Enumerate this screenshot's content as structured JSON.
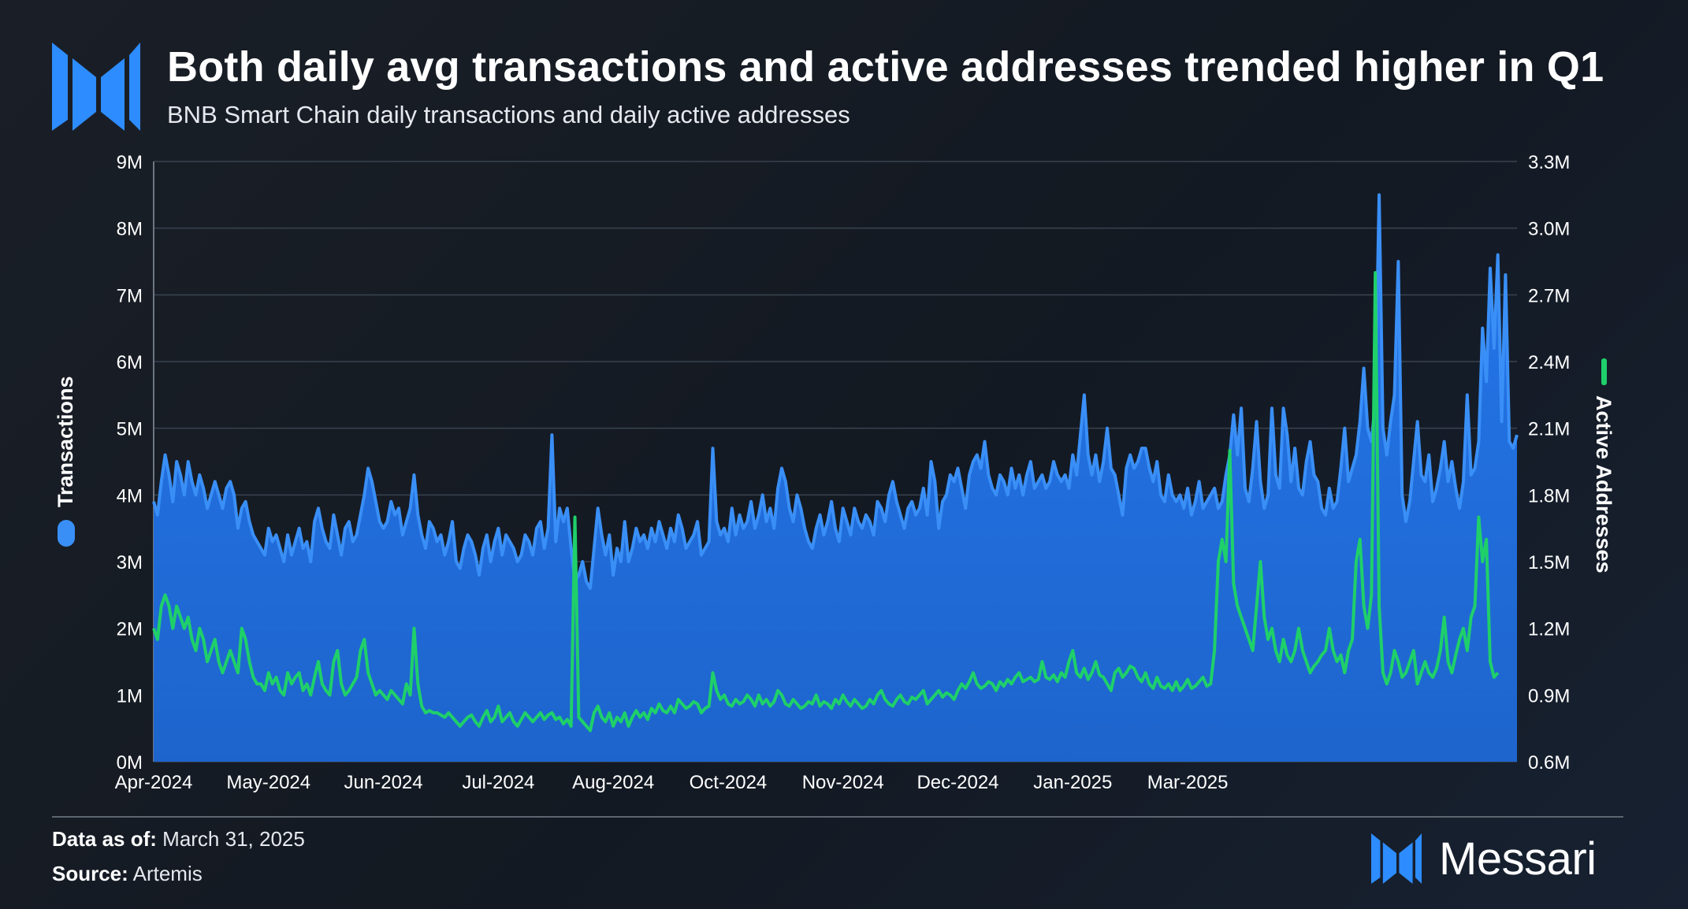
{
  "header": {
    "title": "Both daily avg transactions and active addresses trended higher in Q1",
    "subtitle": "BNB Smart Chain daily transactions and daily active addresses"
  },
  "footer": {
    "data_as_of_label": "Data as of:",
    "data_as_of_value": "March 31, 2025",
    "source_label": "Source:",
    "source_value": "Artemis",
    "brand": "Messari"
  },
  "colors": {
    "transactions": "#1f6fe0",
    "transactions_line": "#3a8ff7",
    "active_addresses": "#1fd06a",
    "grid": "#3a434f",
    "accent_logo": "#2d8cff"
  },
  "chart_data": {
    "type": "area",
    "title": "Both daily avg transactions and active addresses trended higher in Q1",
    "x_tick_labels": [
      "Apr-2024",
      "May-2024",
      "Jun-2024",
      "Jul-2024",
      "Aug-2024",
      "Oct-2024",
      "Nov-2024",
      "Dec-2024",
      "Jan-2025",
      "Mar-2025"
    ],
    "x_tick_index": [
      0,
      30,
      60,
      90,
      120,
      150,
      180,
      210,
      240,
      270
    ],
    "y_left": {
      "label": "Transactions",
      "ticks": [
        "0M",
        "1M",
        "2M",
        "3M",
        "4M",
        "5M",
        "6M",
        "7M",
        "8M",
        "9M"
      ],
      "ylim": [
        0,
        9
      ]
    },
    "y_right": {
      "label": "Active Addresses",
      "ticks": [
        "0.6M",
        "0.9M",
        "1.2M",
        "1.5M",
        "1.8M",
        "2.1M",
        "2.4M",
        "2.7M",
        "3.0M",
        "3.3M"
      ],
      "ylim": [
        0.6,
        3.3
      ]
    },
    "series": [
      {
        "name": "Transactions",
        "axis": "left",
        "unit": "M",
        "values": [
          3.9,
          3.7,
          4.2,
          4.6,
          4.3,
          3.9,
          4.5,
          4.3,
          4.0,
          4.5,
          4.2,
          4.0,
          4.3,
          4.1,
          3.8,
          4.0,
          4.2,
          4.0,
          3.8,
          4.1,
          4.2,
          4.0,
          3.5,
          3.8,
          3.9,
          3.6,
          3.4,
          3.3,
          3.2,
          3.1,
          3.5,
          3.3,
          3.4,
          3.2,
          3.0,
          3.4,
          3.1,
          3.3,
          3.5,
          3.2,
          3.3,
          3.0,
          3.6,
          3.8,
          3.5,
          3.3,
          3.2,
          3.7,
          3.4,
          3.1,
          3.5,
          3.6,
          3.3,
          3.4,
          3.7,
          4.0,
          4.4,
          4.2,
          3.9,
          3.6,
          3.5,
          3.6,
          3.9,
          3.7,
          3.8,
          3.4,
          3.6,
          3.8,
          4.3,
          3.7,
          3.4,
          3.2,
          3.6,
          3.5,
          3.3,
          3.4,
          3.1,
          3.3,
          3.6,
          3.0,
          2.9,
          3.2,
          3.4,
          3.3,
          3.1,
          2.8,
          3.2,
          3.4,
          3.0,
          3.3,
          3.5,
          3.1,
          3.4,
          3.3,
          3.2,
          3.0,
          3.1,
          3.4,
          3.3,
          3.1,
          3.5,
          3.6,
          3.2,
          3.5,
          4.9,
          3.3,
          3.8,
          3.6,
          3.8,
          3.2,
          2.7,
          2.8,
          3.0,
          2.7,
          2.6,
          3.2,
          3.8,
          3.4,
          3.1,
          3.4,
          2.8,
          3.2,
          3.0,
          3.6,
          3.0,
          3.2,
          3.5,
          3.3,
          3.4,
          3.2,
          3.5,
          3.3,
          3.6,
          3.4,
          3.2,
          3.5,
          3.3,
          3.7,
          3.5,
          3.2,
          3.3,
          3.4,
          3.6,
          3.1,
          3.2,
          3.3,
          4.7,
          3.6,
          3.4,
          3.5,
          3.3,
          3.8,
          3.4,
          3.7,
          3.5,
          3.6,
          3.9,
          3.5,
          3.7,
          4.0,
          3.6,
          3.8,
          3.5,
          4.1,
          4.4,
          4.2,
          3.8,
          3.6,
          4.0,
          3.8,
          3.5,
          3.3,
          3.2,
          3.5,
          3.7,
          3.4,
          3.6,
          3.9,
          3.5,
          3.3,
          3.8,
          3.6,
          3.4,
          3.8,
          3.6,
          3.5,
          3.7,
          3.6,
          3.4,
          3.9,
          3.8,
          3.6,
          4.0,
          4.2,
          3.9,
          3.7,
          3.5,
          3.8,
          3.9,
          3.7,
          3.8,
          4.1,
          3.7,
          4.5,
          4.2,
          3.5,
          3.9,
          4.0,
          4.3,
          4.2,
          4.4,
          4.1,
          3.8,
          4.3,
          4.5,
          4.6,
          4.4,
          4.8,
          4.3,
          4.1,
          4.0,
          4.3,
          4.2,
          4.0,
          4.4,
          4.1,
          4.3,
          4.0,
          4.3,
          4.5,
          4.1,
          4.2,
          4.3,
          4.1,
          4.2,
          4.5,
          4.3,
          4.2,
          4.3,
          4.1,
          4.6,
          4.3,
          4.9,
          5.5,
          4.6,
          4.3,
          4.6,
          4.2,
          4.5,
          5.0,
          4.4,
          4.3,
          4.0,
          3.7,
          4.4,
          4.6,
          4.4,
          4.5,
          4.7,
          4.7,
          4.4,
          4.2,
          4.5,
          4.0,
          3.9,
          4.3,
          4.0,
          3.9,
          4.0,
          3.8,
          4.1,
          3.7,
          3.9,
          4.2,
          3.8,
          3.9,
          4.0,
          4.1,
          3.8,
          3.9,
          4.3,
          4.6,
          5.2,
          4.6,
          5.3,
          4.1,
          3.9,
          4.4,
          5.1,
          4.2,
          3.8,
          4.0,
          5.3,
          4.3,
          4.1,
          5.3,
          4.9,
          4.2,
          4.7,
          4.1,
          4.0,
          4.5,
          4.8,
          4.3,
          4.2,
          3.8,
          3.7,
          4.1,
          3.8,
          3.9,
          4.4,
          5.0,
          4.2,
          4.4,
          4.6,
          5.1,
          5.9,
          5.0,
          4.8,
          5.4,
          8.5,
          5.0,
          4.6,
          5.1,
          5.5,
          7.5,
          4.0,
          3.6,
          3.9,
          4.5,
          5.1,
          4.3,
          4.2,
          4.6,
          3.9,
          4.1,
          4.4,
          4.8,
          4.2,
          4.5,
          4.1,
          3.8,
          4.2,
          5.5,
          4.3,
          4.4,
          4.8,
          6.5,
          5.7,
          7.4,
          6.2,
          7.6,
          5.1,
          7.3,
          4.8,
          4.7,
          4.9
        ]
      },
      {
        "name": "Active Addresses",
        "axis": "right",
        "unit": "M",
        "values": [
          1.2,
          1.15,
          1.3,
          1.35,
          1.3,
          1.2,
          1.3,
          1.25,
          1.2,
          1.25,
          1.15,
          1.1,
          1.2,
          1.15,
          1.05,
          1.1,
          1.15,
          1.05,
          1.0,
          1.05,
          1.1,
          1.05,
          1.0,
          1.2,
          1.15,
          1.05,
          0.98,
          0.95,
          0.95,
          0.92,
          1.0,
          0.95,
          0.98,
          0.92,
          0.9,
          1.0,
          0.95,
          0.98,
          1.0,
          0.92,
          0.95,
          0.9,
          0.98,
          1.05,
          0.95,
          0.92,
          0.9,
          1.05,
          1.1,
          0.95,
          0.9,
          0.92,
          0.95,
          0.98,
          1.1,
          1.15,
          1.0,
          0.95,
          0.9,
          0.92,
          0.9,
          0.88,
          0.92,
          0.9,
          0.88,
          0.86,
          0.95,
          0.9,
          1.2,
          0.95,
          0.85,
          0.82,
          0.83,
          0.82,
          0.82,
          0.81,
          0.8,
          0.82,
          0.8,
          0.78,
          0.76,
          0.78,
          0.8,
          0.81,
          0.78,
          0.76,
          0.8,
          0.83,
          0.78,
          0.8,
          0.85,
          0.78,
          0.8,
          0.82,
          0.78,
          0.76,
          0.79,
          0.82,
          0.8,
          0.78,
          0.8,
          0.82,
          0.79,
          0.81,
          0.82,
          0.79,
          0.8,
          0.77,
          0.79,
          0.76,
          1.7,
          0.8,
          0.78,
          0.76,
          0.74,
          0.82,
          0.85,
          0.8,
          0.78,
          0.82,
          0.76,
          0.8,
          0.78,
          0.82,
          0.76,
          0.8,
          0.83,
          0.8,
          0.82,
          0.79,
          0.84,
          0.82,
          0.86,
          0.83,
          0.82,
          0.85,
          0.82,
          0.88,
          0.86,
          0.84,
          0.85,
          0.87,
          0.86,
          0.82,
          0.84,
          0.85,
          1.0,
          0.92,
          0.88,
          0.9,
          0.86,
          0.85,
          0.88,
          0.86,
          0.87,
          0.9,
          0.88,
          0.85,
          0.9,
          0.86,
          0.88,
          0.85,
          0.87,
          0.92,
          0.9,
          0.86,
          0.85,
          0.88,
          0.86,
          0.84,
          0.85,
          0.87,
          0.86,
          0.9,
          0.85,
          0.87,
          0.86,
          0.84,
          0.88,
          0.86,
          0.9,
          0.87,
          0.85,
          0.88,
          0.86,
          0.84,
          0.85,
          0.88,
          0.86,
          0.9,
          0.92,
          0.88,
          0.86,
          0.85,
          0.88,
          0.9,
          0.87,
          0.86,
          0.89,
          0.88,
          0.9,
          0.92,
          0.86,
          0.88,
          0.9,
          0.92,
          0.89,
          0.91,
          0.9,
          0.88,
          0.92,
          0.95,
          0.93,
          0.96,
          1.0,
          0.95,
          0.93,
          0.94,
          0.96,
          0.95,
          0.92,
          0.96,
          0.94,
          0.97,
          0.95,
          0.98,
          1.0,
          0.96,
          0.97,
          0.98,
          0.96,
          0.97,
          1.05,
          0.98,
          0.97,
          0.99,
          0.96,
          1.0,
          0.98,
          1.05,
          1.1,
          1.0,
          0.98,
          1.02,
          0.97,
          1.0,
          1.05,
          0.99,
          0.98,
          0.95,
          0.92,
          1.0,
          1.02,
          0.98,
          1.0,
          1.03,
          1.02,
          0.98,
          0.96,
          1.0,
          0.95,
          0.93,
          0.98,
          0.94,
          0.93,
          0.95,
          0.92,
          0.96,
          0.92,
          0.94,
          0.97,
          0.93,
          0.94,
          0.96,
          0.98,
          0.94,
          0.95,
          1.1,
          1.5,
          1.6,
          1.5,
          2.0,
          1.4,
          1.3,
          1.25,
          1.2,
          1.15,
          1.1,
          1.3,
          1.5,
          1.25,
          1.15,
          1.2,
          1.1,
          1.05,
          1.15,
          1.08,
          1.05,
          1.1,
          1.2,
          1.1,
          1.05,
          1.0,
          1.03,
          1.05,
          1.08,
          1.1,
          1.2,
          1.1,
          1.05,
          1.08,
          1.0,
          1.1,
          1.15,
          1.5,
          1.6,
          1.3,
          1.2,
          1.35,
          2.8,
          1.3,
          1.0,
          0.95,
          1.0,
          1.1,
          1.05,
          0.98,
          1.0,
          1.05,
          1.1,
          0.95,
          1.0,
          1.05,
          1.0,
          0.98,
          1.02,
          1.1,
          1.25,
          1.05,
          1.0,
          1.08,
          1.15,
          1.2,
          1.1,
          1.25,
          1.3,
          1.7,
          1.5,
          1.6,
          1.05,
          0.98,
          1.0
        ]
      }
    ],
    "legend": [
      {
        "name": "Transactions",
        "position": "left-vertical"
      },
      {
        "name": "Active Addresses",
        "position": "right-vertical"
      }
    ],
    "grid": true
  }
}
